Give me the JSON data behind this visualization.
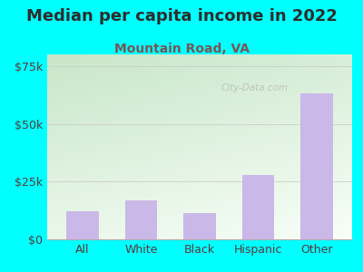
{
  "title": "Median per capita income in 2022",
  "subtitle": "Mountain Road, VA",
  "categories": [
    "All",
    "White",
    "Black",
    "Hispanic",
    "Other"
  ],
  "values": [
    12000,
    17000,
    11500,
    28000,
    63000
  ],
  "bar_color": "#c9b8e8",
  "background_color": "#00ffff",
  "chart_bg_top_left": "#c8e6c9",
  "chart_bg_right": "#f0fff0",
  "chart_bg_bottom": "#ffffff",
  "title_color": "#2d2d2d",
  "subtitle_color": "#7a5555",
  "tick_color": "#5a3a3a",
  "axis_label_color": "#5a3a3a",
  "ylim": [
    0,
    80000
  ],
  "yticks": [
    0,
    25000,
    50000,
    75000
  ],
  "ytick_labels": [
    "$0",
    "$25k",
    "$50k",
    "$75k"
  ],
  "watermark": "City-Data.com",
  "title_fontsize": 13,
  "subtitle_fontsize": 10,
  "tick_fontsize": 9,
  "bar_width": 0.55
}
